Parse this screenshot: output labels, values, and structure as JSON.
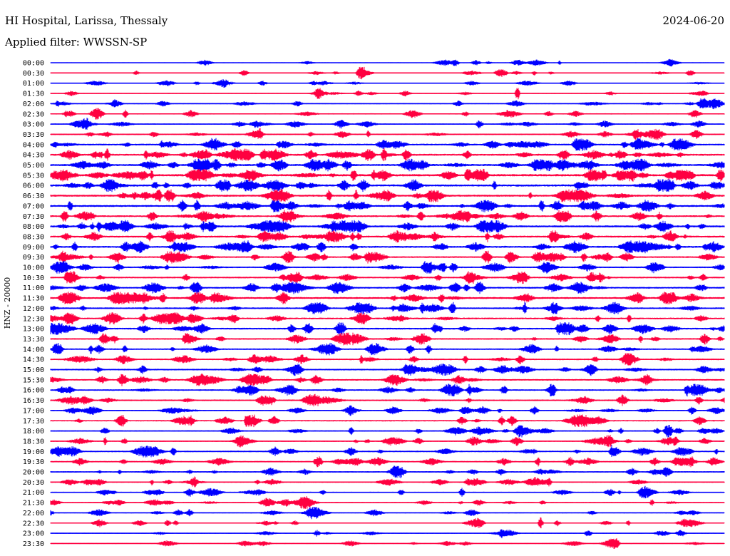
{
  "header": {
    "station": "HI Hospital, Larissa, Thessaly",
    "date": "2024-06-20",
    "filter": "Applied filter: WWSSN-SP"
  },
  "chart_data": {
    "type": "line",
    "title": "HI Hospital, Larissa, Thessaly",
    "date": "2024-06-20",
    "filter": "Applied filter: WWSSN-SP",
    "ylabel": "HNZ - 20000",
    "row_labels": [
      "00:00",
      "00:30",
      "01:00",
      "01:30",
      "02:00",
      "02:30",
      "03:00",
      "03:30",
      "04:00",
      "04:30",
      "05:00",
      "05:30",
      "06:00",
      "06:30",
      "07:00",
      "07:30",
      "08:00",
      "08:30",
      "09:00",
      "09:30",
      "10:00",
      "10:30",
      "11:00",
      "11:30",
      "12:00",
      "12:30",
      "13:00",
      "13:30",
      "14:00",
      "14:30",
      "15:00",
      "15:30",
      "16:00",
      "16:30",
      "17:00",
      "17:30",
      "18:00",
      "18:30",
      "19:00",
      "19:30",
      "20:00",
      "20:30",
      "21:00",
      "21:30",
      "22:00",
      "22:30",
      "23:00",
      "23:30"
    ],
    "trace_colors": [
      "#0000ff",
      "#ff0040"
    ],
    "activity_level": [
      0.15,
      0.12,
      0.15,
      0.2,
      0.3,
      0.35,
      0.35,
      0.5,
      0.7,
      0.8,
      0.9,
      1.0,
      0.9,
      0.85,
      0.8,
      0.75,
      0.85,
      0.8,
      0.8,
      0.65,
      0.6,
      0.65,
      0.7,
      0.8,
      0.65,
      0.7,
      0.7,
      0.6,
      0.55,
      0.55,
      0.6,
      0.6,
      0.55,
      0.6,
      0.45,
      0.5,
      0.45,
      0.45,
      0.55,
      0.5,
      0.5,
      0.4,
      0.35,
      0.35,
      0.3,
      0.25,
      0.25,
      0.2
    ]
  }
}
